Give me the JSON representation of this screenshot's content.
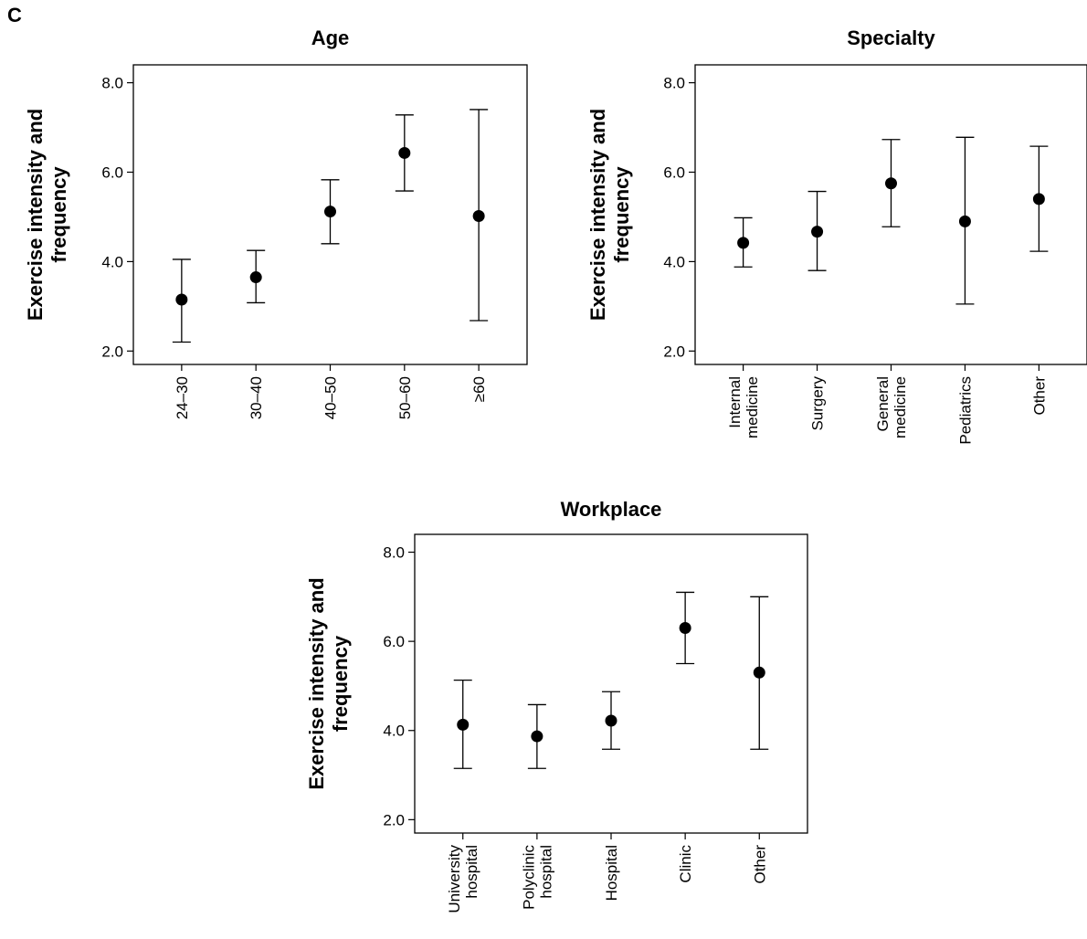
{
  "panel_label": "C",
  "chart_data": [
    {
      "type": "scatter",
      "subtype": "error-bar",
      "title": "Age",
      "ylabel": [
        "Exercise intensity and",
        "frequency"
      ],
      "xlabel": "",
      "ylim": [
        1.7,
        8.4
      ],
      "yticks": [
        "2.0",
        "4.0",
        "6.0",
        "8.0"
      ],
      "categories": [
        [
          "24–30"
        ],
        [
          "30–40"
        ],
        [
          "40–50"
        ],
        [
          "50–60"
        ],
        [
          "≥60"
        ]
      ],
      "mean": [
        3.15,
        3.65,
        5.12,
        6.43,
        5.02
      ],
      "lower": [
        2.2,
        3.08,
        4.4,
        5.58,
        2.68
      ],
      "upper": [
        4.05,
        4.25,
        5.83,
        7.28,
        7.4
      ],
      "grid": false,
      "legend": "none"
    },
    {
      "type": "scatter",
      "subtype": "error-bar",
      "title": "Specialty",
      "ylabel": [
        "Exercise intensity and",
        "frequency"
      ],
      "xlabel": "",
      "ylim": [
        1.7,
        8.4
      ],
      "yticks": [
        "2.0",
        "4.0",
        "6.0",
        "8.0"
      ],
      "categories": [
        [
          "Internal",
          "medicine"
        ],
        [
          "Surgery"
        ],
        [
          "General",
          "medicine"
        ],
        [
          "Pediatrics"
        ],
        [
          "Other"
        ]
      ],
      "mean": [
        4.42,
        4.67,
        5.75,
        4.9,
        5.4
      ],
      "lower": [
        3.88,
        3.8,
        4.78,
        3.05,
        4.23
      ],
      "upper": [
        4.98,
        5.57,
        6.73,
        6.78,
        6.58
      ],
      "grid": false,
      "legend": "none"
    },
    {
      "type": "scatter",
      "subtype": "error-bar",
      "title": "Workplace",
      "ylabel": [
        "Exercise intensity and",
        "frequency"
      ],
      "xlabel": "",
      "ylim": [
        1.7,
        8.4
      ],
      "yticks": [
        "2.0",
        "4.0",
        "6.0",
        "8.0"
      ],
      "categories": [
        [
          "University",
          "hospital"
        ],
        [
          "Polyclinic",
          "hospital"
        ],
        [
          "Hospital"
        ],
        [
          "Clinic"
        ],
        [
          "Other"
        ]
      ],
      "mean": [
        4.13,
        3.87,
        4.22,
        6.3,
        5.3
      ],
      "lower": [
        3.15,
        3.15,
        3.58,
        5.5,
        3.58
      ],
      "upper": [
        5.13,
        4.58,
        4.87,
        7.1,
        7.0
      ],
      "grid": false,
      "legend": "none"
    }
  ]
}
